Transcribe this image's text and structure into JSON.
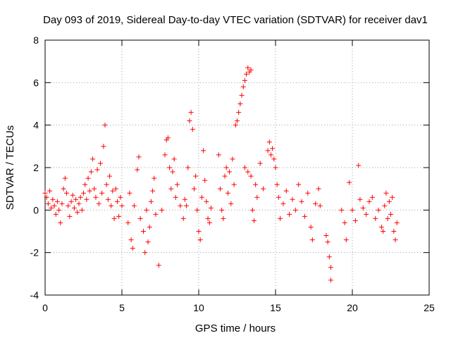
{
  "chart_data": {
    "type": "scatter",
    "title": "Day 093 of 2019, Sidereal Day-to-day VTEC variation (SDTVAR) for receiver dav1",
    "xlabel": "GPS time / hours",
    "ylabel": "SDTVAR / TECUs",
    "xlim": [
      0,
      25
    ],
    "ylim": [
      -4,
      8
    ],
    "xticks": [
      0,
      5,
      10,
      15,
      20,
      25
    ],
    "yticks": [
      -4,
      -2,
      0,
      2,
      4,
      6,
      8
    ],
    "xtick_labels": [
      "0",
      "5",
      "10",
      "15",
      "20",
      "25"
    ],
    "ytick_labels": [
      "-4",
      "-2",
      "0",
      "2",
      "4",
      "6",
      "8"
    ],
    "grid": true,
    "marker": "+",
    "series_color": "#ff0000",
    "series": [
      {
        "name": "SDTVAR",
        "points": [
          [
            0.0,
            0.8
          ],
          [
            0.1,
            0.6
          ],
          [
            0.2,
            0.3
          ],
          [
            0.3,
            0.9
          ],
          [
            0.4,
            0.1
          ],
          [
            0.5,
            0.5
          ],
          [
            0.6,
            0.2
          ],
          [
            0.7,
            -0.2
          ],
          [
            0.8,
            0.4
          ],
          [
            0.9,
            0.0
          ],
          [
            1.0,
            -0.6
          ],
          [
            1.1,
            0.3
          ],
          [
            1.2,
            1.0
          ],
          [
            1.3,
            1.5
          ],
          [
            1.4,
            0.8
          ],
          [
            1.5,
            0.2
          ],
          [
            1.6,
            -0.3
          ],
          [
            1.7,
            0.4
          ],
          [
            1.8,
            0.7
          ],
          [
            1.9,
            0.1
          ],
          [
            2.0,
            0.5
          ],
          [
            2.1,
            -0.1
          ],
          [
            2.2,
            0.3
          ],
          [
            2.3,
            0.6
          ],
          [
            2.4,
            0.0
          ],
          [
            2.5,
            0.8
          ],
          [
            2.6,
            1.2
          ],
          [
            2.7,
            0.5
          ],
          [
            2.8,
            1.5
          ],
          [
            2.9,
            0.9
          ],
          [
            3.0,
            1.8
          ],
          [
            3.1,
            2.4
          ],
          [
            3.2,
            1.0
          ],
          [
            3.3,
            0.6
          ],
          [
            3.4,
            1.9
          ],
          [
            3.5,
            0.3
          ],
          [
            3.6,
            2.2
          ],
          [
            3.7,
            0.8
          ],
          [
            3.8,
            3.0
          ],
          [
            3.9,
            4.0
          ],
          [
            4.0,
            1.2
          ],
          [
            4.1,
            0.5
          ],
          [
            4.2,
            1.6
          ],
          [
            4.3,
            0.2
          ],
          [
            4.4,
            0.9
          ],
          [
            4.5,
            -0.4
          ],
          [
            4.6,
            1.0
          ],
          [
            4.7,
            0.4
          ],
          [
            4.8,
            -0.3
          ],
          [
            4.9,
            0.6
          ],
          [
            5.0,
            0.2
          ],
          [
            5.4,
            -0.6
          ],
          [
            5.5,
            0.8
          ],
          [
            5.6,
            -1.4
          ],
          [
            5.7,
            -1.8
          ],
          [
            5.8,
            0.2
          ],
          [
            6.0,
            1.9
          ],
          [
            6.1,
            2.5
          ],
          [
            6.2,
            -0.4
          ],
          [
            6.4,
            -1.0
          ],
          [
            6.5,
            -2.0
          ],
          [
            6.6,
            0.0
          ],
          [
            6.7,
            -1.5
          ],
          [
            6.8,
            -0.8
          ],
          [
            6.9,
            0.4
          ],
          [
            7.0,
            0.9
          ],
          [
            7.1,
            1.5
          ],
          [
            7.2,
            -0.2
          ],
          [
            7.4,
            -2.6
          ],
          [
            7.6,
            0.0
          ],
          [
            7.8,
            2.6
          ],
          [
            7.9,
            3.3
          ],
          [
            8.0,
            3.4
          ],
          [
            8.1,
            2.0
          ],
          [
            8.2,
            1.0
          ],
          [
            8.3,
            1.8
          ],
          [
            8.4,
            2.4
          ],
          [
            8.5,
            0.6
          ],
          [
            8.6,
            1.2
          ],
          [
            8.8,
            0.2
          ],
          [
            9.0,
            -0.4
          ],
          [
            9.1,
            0.5
          ],
          [
            9.2,
            0.2
          ],
          [
            9.3,
            2.0
          ],
          [
            9.4,
            4.2
          ],
          [
            9.5,
            4.6
          ],
          [
            9.6,
            3.8
          ],
          [
            9.7,
            1.0
          ],
          [
            9.8,
            1.6
          ],
          [
            9.9,
            0.0
          ],
          [
            10.0,
            -1.0
          ],
          [
            10.1,
            -1.4
          ],
          [
            10.2,
            0.6
          ],
          [
            10.3,
            2.8
          ],
          [
            10.4,
            1.4
          ],
          [
            10.5,
            0.4
          ],
          [
            10.6,
            -0.4
          ],
          [
            10.7,
            -0.6
          ],
          [
            10.8,
            0.1
          ],
          [
            11.3,
            2.6
          ],
          [
            11.4,
            1.0
          ],
          [
            11.5,
            0.0
          ],
          [
            11.6,
            -0.4
          ],
          [
            11.7,
            1.6
          ],
          [
            11.8,
            2.0
          ],
          [
            11.9,
            0.8
          ],
          [
            12.0,
            1.8
          ],
          [
            12.1,
            0.3
          ],
          [
            12.2,
            2.4
          ],
          [
            12.3,
            1.2
          ],
          [
            12.4,
            4.0
          ],
          [
            12.5,
            4.2
          ],
          [
            12.6,
            4.6
          ],
          [
            12.7,
            5.0
          ],
          [
            12.8,
            5.4
          ],
          [
            12.9,
            5.8
          ],
          [
            13.0,
            6.1
          ],
          [
            13.1,
            6.4
          ],
          [
            13.2,
            6.7
          ],
          [
            13.3,
            6.5
          ],
          [
            13.4,
            6.6
          ],
          [
            13.0,
            2.0
          ],
          [
            13.2,
            1.8
          ],
          [
            13.4,
            1.6
          ],
          [
            13.5,
            0.0
          ],
          [
            13.6,
            -0.5
          ],
          [
            13.7,
            1.2
          ],
          [
            13.8,
            0.6
          ],
          [
            14.0,
            2.2
          ],
          [
            14.2,
            1.0
          ],
          [
            14.5,
            2.8
          ],
          [
            14.6,
            3.2
          ],
          [
            14.7,
            2.6
          ],
          [
            14.8,
            2.9
          ],
          [
            14.9,
            2.4
          ],
          [
            15.0,
            2.0
          ],
          [
            15.1,
            1.2
          ],
          [
            15.2,
            0.6
          ],
          [
            15.3,
            -0.4
          ],
          [
            15.5,
            0.3
          ],
          [
            15.7,
            0.9
          ],
          [
            15.9,
            -0.2
          ],
          [
            16.1,
            0.5
          ],
          [
            16.3,
            0.0
          ],
          [
            16.5,
            1.2
          ],
          [
            16.7,
            0.4
          ],
          [
            16.9,
            -0.3
          ],
          [
            17.1,
            0.8
          ],
          [
            17.3,
            -0.8
          ],
          [
            17.4,
            -1.4
          ],
          [
            17.6,
            0.3
          ],
          [
            17.8,
            1.0
          ],
          [
            17.9,
            0.2
          ],
          [
            18.3,
            -1.2
          ],
          [
            18.4,
            -1.5
          ],
          [
            18.5,
            -2.2
          ],
          [
            18.6,
            -2.7
          ],
          [
            18.6,
            -3.3
          ],
          [
            19.3,
            0.0
          ],
          [
            19.5,
            -0.6
          ],
          [
            19.6,
            -1.4
          ],
          [
            19.8,
            1.3
          ],
          [
            20.0,
            0.0
          ],
          [
            20.2,
            -0.5
          ],
          [
            20.4,
            2.1
          ],
          [
            20.5,
            0.5
          ],
          [
            20.7,
            0.1
          ],
          [
            20.9,
            -0.2
          ],
          [
            21.1,
            0.4
          ],
          [
            21.3,
            0.6
          ],
          [
            21.5,
            -0.4
          ],
          [
            21.7,
            0.0
          ],
          [
            21.9,
            -0.8
          ],
          [
            22.0,
            -1.0
          ],
          [
            22.1,
            0.2
          ],
          [
            22.2,
            0.8
          ],
          [
            22.3,
            -0.4
          ],
          [
            22.4,
            0.4
          ],
          [
            22.5,
            -0.2
          ],
          [
            22.6,
            0.6
          ],
          [
            22.7,
            -1.0
          ],
          [
            22.8,
            -1.4
          ],
          [
            22.9,
            -0.6
          ]
        ]
      }
    ]
  }
}
